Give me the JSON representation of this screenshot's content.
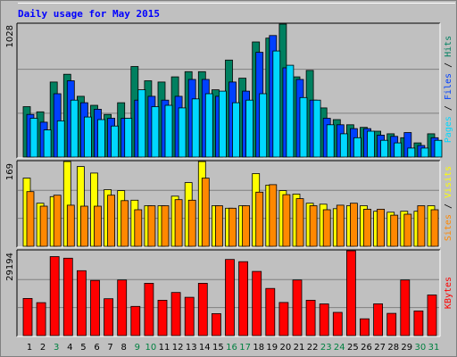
{
  "title": "Daily usage for May 2015",
  "colors": {
    "background": "#c0c0c0",
    "pages": "#00d8ff",
    "files": "#0040ff",
    "hits": "#008060",
    "visits": "#ffff00",
    "sites": "#ff8800",
    "kbytes": "#ff0000",
    "weekend_label": "#008040",
    "title": "#0000ff"
  },
  "chart_data": [
    {
      "type": "bar",
      "panel": "hits-files-pages",
      "ylabel_parts": [
        {
          "text": "Pages",
          "color": "#00d8ff"
        },
        {
          "text": " / ",
          "color": "#000000"
        },
        {
          "text": "Files",
          "color": "#0040ff"
        },
        {
          "text": " / ",
          "color": "#000000"
        },
        {
          "text": "Hits",
          "color": "#008060"
        }
      ],
      "ymax_label": "1028",
      "ylim": [
        0,
        1028
      ],
      "categories": [
        "1",
        "2",
        "3",
        "4",
        "5",
        "6",
        "7",
        "8",
        "9",
        "10",
        "11",
        "12",
        "13",
        "14",
        "15",
        "16",
        "17",
        "18",
        "19",
        "20",
        "21",
        "22",
        "23",
        "24",
        "25",
        "26",
        "27",
        "28",
        "29",
        "30",
        "31"
      ],
      "series": [
        {
          "name": "Hits",
          "values": [
            390,
            350,
            580,
            640,
            470,
            400,
            330,
            420,
            700,
            590,
            580,
            620,
            660,
            660,
            520,
            750,
            610,
            890,
            920,
            1028,
            620,
            670,
            380,
            290,
            250,
            230,
            200,
            180,
            150,
            110,
            180
          ]
        },
        {
          "name": "Files",
          "values": [
            330,
            270,
            490,
            590,
            420,
            370,
            300,
            300,
            440,
            470,
            440,
            470,
            600,
            600,
            470,
            580,
            510,
            810,
            940,
            690,
            600,
            440,
            300,
            250,
            220,
            220,
            170,
            160,
            190,
            90,
            150
          ]
        },
        {
          "name": "Pages",
          "values": [
            300,
            210,
            280,
            440,
            310,
            290,
            240,
            300,
            520,
            390,
            400,
            380,
            450,
            490,
            510,
            420,
            440,
            490,
            820,
            710,
            460,
            440,
            250,
            180,
            150,
            200,
            130,
            110,
            70,
            70,
            130
          ]
        }
      ]
    },
    {
      "type": "bar",
      "panel": "visits-sites",
      "ylabel_parts": [
        {
          "text": "Sites",
          "color": "#ff8800"
        },
        {
          "text": " / ",
          "color": "#000000"
        },
        {
          "text": "Visits",
          "color": "#ffff00"
        }
      ],
      "ymax_label": "169",
      "ylim": [
        0,
        169
      ],
      "categories": [
        "1",
        "2",
        "3",
        "4",
        "5",
        "6",
        "7",
        "8",
        "9",
        "10",
        "11",
        "12",
        "13",
        "14",
        "15",
        "16",
        "17",
        "18",
        "19",
        "20",
        "21",
        "22",
        "23",
        "24",
        "25",
        "26",
        "27",
        "28",
        "29",
        "30",
        "31"
      ],
      "series": [
        {
          "name": "Visits",
          "values": [
            136,
            86,
            99,
            169,
            159,
            146,
            113,
            111,
            92,
            81,
            81,
            100,
            127,
            169,
            81,
            76,
            81,
            145,
            122,
            111,
            104,
            86,
            84,
            75,
            81,
            81,
            70,
            68,
            70,
            70,
            81
          ]
        },
        {
          "name": "Sites",
          "values": [
            109,
            80,
            102,
            82,
            80,
            80,
            102,
            91,
            73,
            81,
            81,
            93,
            92,
            136,
            81,
            76,
            81,
            108,
            123,
            103,
            95,
            81,
            73,
            82,
            86,
            74,
            74,
            62,
            64,
            81,
            73
          ]
        }
      ]
    },
    {
      "type": "bar",
      "panel": "kbytes",
      "ylabel_parts": [
        {
          "text": "KBytes",
          "color": "#ff0000"
        }
      ],
      "ymax_label": "29194",
      "ylim": [
        0,
        29194
      ],
      "categories": [
        "1",
        "2",
        "3",
        "4",
        "5",
        "6",
        "7",
        "8",
        "9",
        "10",
        "11",
        "12",
        "13",
        "14",
        "15",
        "16",
        "17",
        "18",
        "19",
        "20",
        "21",
        "22",
        "23",
        "24",
        "25",
        "26",
        "27",
        "28",
        "29",
        "30",
        "31"
      ],
      "series": [
        {
          "name": "KBytes",
          "values": [
            12780,
            11350,
            27190,
            26650,
            22350,
            19000,
            12700,
            19130,
            10050,
            18020,
            12180,
            14840,
            13190,
            18010,
            7560,
            26210,
            25430,
            22100,
            16240,
            11390,
            19150,
            12180,
            10900,
            8000,
            29194,
            5790,
            10950,
            7650,
            19150,
            8490,
            13980
          ]
        }
      ]
    }
  ],
  "xaxis": {
    "labels": [
      "1",
      "2",
      "3",
      "4",
      "5",
      "6",
      "7",
      "8",
      "9",
      "10",
      "11",
      "12",
      "13",
      "14",
      "15",
      "16",
      "17",
      "18",
      "19",
      "20",
      "21",
      "22",
      "23",
      "24",
      "25",
      "26",
      "27",
      "28",
      "29",
      "30",
      "31"
    ],
    "weekend": [
      3,
      9,
      10,
      16,
      17,
      23,
      24,
      30,
      31
    ]
  }
}
